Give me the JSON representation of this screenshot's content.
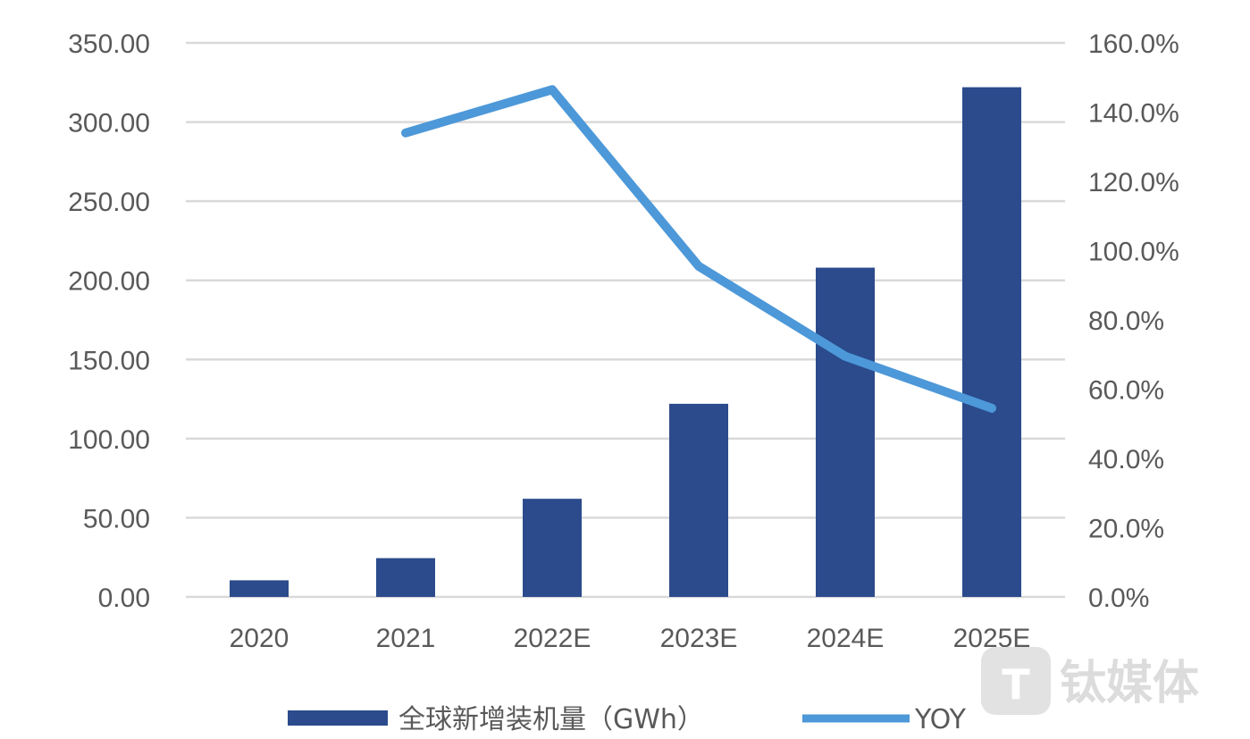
{
  "chart_data": {
    "type": "bar",
    "categories": [
      "2020",
      "2021",
      "2022E",
      "2023E",
      "2024E",
      "2025E"
    ],
    "series": [
      {
        "name": "全球新增装机量（GWh）",
        "kind": "bar",
        "axis": "left",
        "color": "#2b4b8c",
        "values": [
          10.5,
          24.5,
          62,
          122,
          208,
          322
        ]
      },
      {
        "name": "YOY",
        "kind": "line",
        "axis": "right",
        "color": "#4d98d8",
        "values": [
          null,
          134.0,
          146.5,
          95.5,
          69.5,
          54.5
        ]
      }
    ],
    "y_left": {
      "ylim": [
        0,
        350
      ],
      "ticks": [
        "0.00",
        "50.00",
        "100.00",
        "150.00",
        "200.00",
        "250.00",
        "300.00",
        "350.00"
      ]
    },
    "y_right": {
      "ylim": [
        0,
        160
      ],
      "ticks": [
        "0.0%",
        "20.0%",
        "40.0%",
        "60.0%",
        "80.0%",
        "100.0%",
        "120.0%",
        "140.0%",
        "160.0%"
      ]
    },
    "grid": true,
    "legend_position": "bottom"
  },
  "watermark": {
    "text": "钛媒体",
    "icon": "tmt-logo-icon"
  }
}
